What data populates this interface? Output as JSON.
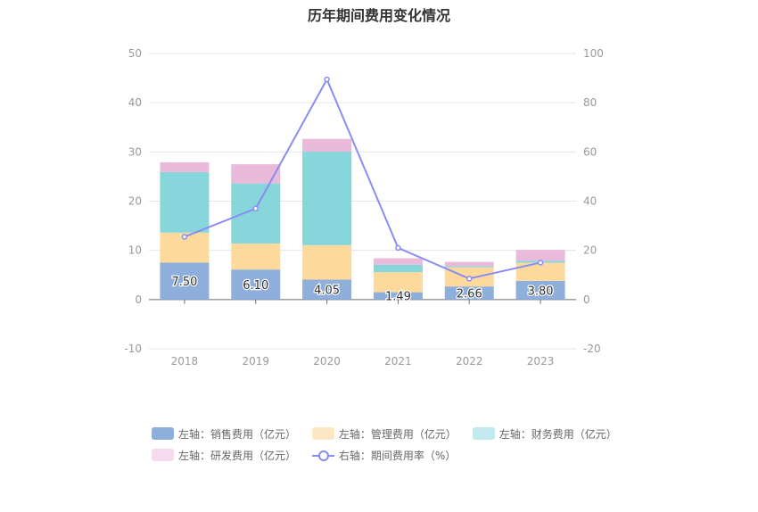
{
  "chart_data": {
    "type": "bar",
    "title": "历年期间费用变化情况",
    "categories": [
      "2018",
      "2019",
      "2020",
      "2021",
      "2022",
      "2023"
    ],
    "left_axis": {
      "ylim": [
        -10,
        50
      ],
      "ticks": [
        "-10",
        "0",
        "10",
        "20",
        "30",
        "40",
        "50"
      ]
    },
    "right_axis": {
      "ylim": [
        -20,
        100
      ],
      "ticks": [
        "-20",
        "0",
        "20",
        "40",
        "60",
        "80",
        "100"
      ]
    },
    "series": [
      {
        "name": "左轴：销售费用（亿元）",
        "type": "bar",
        "axis": "left",
        "color": "#8eaedc",
        "values": [
          7.5,
          6.1,
          4.05,
          1.49,
          2.66,
          3.8
        ],
        "labels": [
          "7.50",
          "6.10",
          "4.05",
          "1.49",
          "2.66",
          "3.80"
        ]
      },
      {
        "name": "左轴：管理费用（亿元）",
        "type": "bar",
        "axis": "left",
        "color": "#fdd99b",
        "values": [
          6.1,
          5.3,
          7.0,
          4.1,
          3.9,
          3.7
        ]
      },
      {
        "name": "左轴：财务费用（亿元）",
        "type": "bar",
        "axis": "left",
        "color": "#86d6dc",
        "values": [
          12.3,
          12.2,
          19.0,
          1.5,
          0.2,
          0.4
        ]
      },
      {
        "name": "左轴：研发费用（亿元）",
        "type": "bar",
        "axis": "left",
        "color": "#e9bada",
        "values": [
          2.0,
          3.9,
          2.6,
          1.3,
          0.9,
          2.2
        ]
      },
      {
        "name": "右轴：期间费用率（%）",
        "type": "line",
        "axis": "right",
        "color": "#8a8cf2",
        "values": [
          25.5,
          37.0,
          89.5,
          21.0,
          8.5,
          15.0
        ]
      }
    ],
    "grid": true,
    "legend_position": "bottom"
  }
}
